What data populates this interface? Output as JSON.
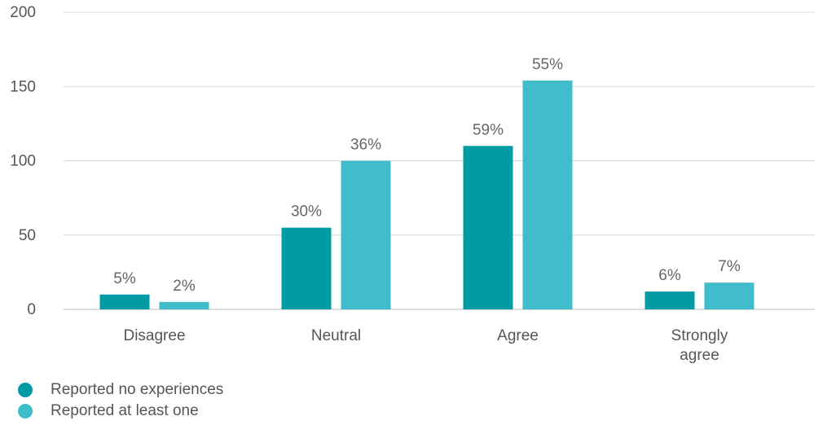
{
  "chart_data": {
    "type": "bar",
    "categories": [
      "Disagree",
      "Neutral",
      "Agree",
      "Strongly agree"
    ],
    "category_lines": [
      [
        "Disagree"
      ],
      [
        "Neutral"
      ],
      [
        "Agree"
      ],
      [
        "Strongly",
        "agree"
      ]
    ],
    "series": [
      {
        "name": "Reported no experiences",
        "color": "#009ba5",
        "values": [
          10,
          55,
          110,
          12
        ],
        "labels": [
          "5%",
          "30%",
          "59%",
          "6%"
        ]
      },
      {
        "name": "Reported at least one",
        "color": "#40bccb",
        "values": [
          5,
          100,
          154,
          18
        ],
        "labels": [
          "2%",
          "36%",
          "55%",
          "7%"
        ]
      }
    ],
    "ylim": [
      0,
      200
    ],
    "yticks": [
      "0",
      "50",
      "100",
      "150",
      "200"
    ],
    "grid": true,
    "legend_position": "bottom-left"
  }
}
